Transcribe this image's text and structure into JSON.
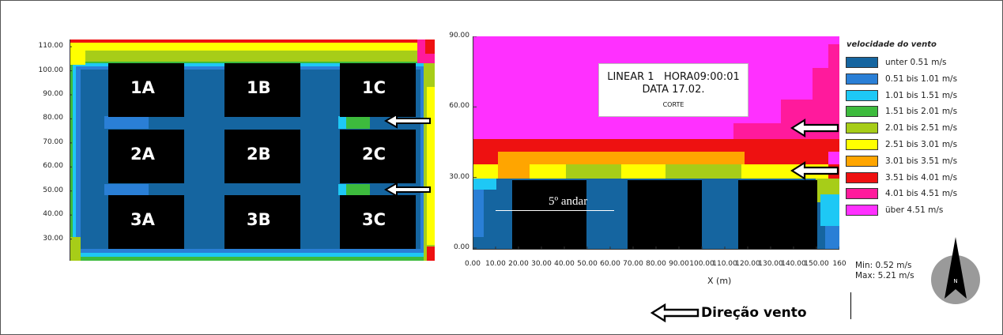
{
  "chart_data": [
    {
      "type": "heatmap",
      "view": "plan",
      "y_ticks": [
        "110.00",
        "100.00",
        "90.00",
        "80.00",
        "70.00",
        "60.00",
        "50.00",
        "40.00",
        "30.00"
      ],
      "y_values": [
        110,
        100,
        90,
        80,
        70,
        60,
        50,
        40,
        30
      ],
      "ylim": [
        21,
        113
      ],
      "blocks": [
        {
          "label": "1A",
          "row": 1,
          "col": 1
        },
        {
          "label": "1B",
          "row": 1,
          "col": 2
        },
        {
          "label": "1C",
          "row": 1,
          "col": 3
        },
        {
          "label": "2A",
          "row": 2,
          "col": 1
        },
        {
          "label": "2B",
          "row": 2,
          "col": 2
        },
        {
          "label": "2C",
          "row": 2,
          "col": 3
        },
        {
          "label": "3A",
          "row": 3,
          "col": 1
        },
        {
          "label": "3B",
          "row": 3,
          "col": 2
        },
        {
          "label": "3C",
          "row": 3,
          "col": 3
        }
      ],
      "wind_arrows_y": [
        80,
        50
      ]
    },
    {
      "type": "heatmap",
      "view": "section",
      "y_ticks": [
        "90.00",
        "60.00",
        "30.00",
        "0.00"
      ],
      "y_values": [
        90,
        60,
        30,
        0
      ],
      "ylim": [
        0,
        90
      ],
      "x_ticks": [
        "0.00",
        "10.00",
        "20.00",
        "30.00",
        "40.00",
        "50.00",
        "60.00",
        "70.00",
        "80.00",
        "90.00",
        "100.00",
        "110.00",
        "120.00",
        "130.00",
        "140.00",
        "150.00",
        "160"
      ],
      "x_values": [
        0,
        10,
        20,
        30,
        40,
        50,
        60,
        70,
        80,
        90,
        100,
        110,
        120,
        130,
        140,
        150,
        160
      ],
      "xlim": [
        0,
        160
      ],
      "xlabel": "X (m)",
      "annotation_lines": [
        "LINEAR 1   HORA09:00:01",
        "DATA 17.02.",
        "CORTE"
      ],
      "floor_label": "5º andar",
      "wind_arrows_y": [
        48,
        35
      ]
    }
  ],
  "legend": {
    "title": "velocidade do vento",
    "items": [
      {
        "label": "unter 0.51 m/s",
        "color": "#1565a0"
      },
      {
        "label": "0.51 bis 1.01 m/s",
        "color": "#2a7fd6"
      },
      {
        "label": "1.01 bis 1.51 m/s",
        "color": "#1ec8f5"
      },
      {
        "label": "1.51 bis 2.01 m/s",
        "color": "#3dbb3d"
      },
      {
        "label": "2.01 bis 2.51 m/s",
        "color": "#a7cd18"
      },
      {
        "label": "2.51 bis 3.01 m/s",
        "color": "#ffff00"
      },
      {
        "label": "3.01 bis 3.51 m/s",
        "color": "#ffa500"
      },
      {
        "label": "3.51 bis 4.01 m/s",
        "color": "#ee1111"
      },
      {
        "label": "4.01 bis 4.51 m/s",
        "color": "#ff1a9c"
      },
      {
        "label": "über 4.51 m/s",
        "color": "#ff30ff"
      }
    ]
  },
  "stats": {
    "min": "Min: 0.52 m/s",
    "max": "Max: 5.21 m/s"
  },
  "wind_direction_label": "Direção vento",
  "compass_label": "N",
  "colors": {
    "building": "#000000",
    "background": "#ffffff",
    "blue_dark": "#1565a0",
    "blue_mid": "#2a7fd6",
    "cyan": "#1ec8f5",
    "green": "#3dbb3d",
    "lime": "#a7cd18",
    "yellow": "#ffff00",
    "orange": "#ffa500",
    "red": "#ee1111",
    "pink": "#ff1a9c",
    "magenta": "#ff30ff"
  }
}
